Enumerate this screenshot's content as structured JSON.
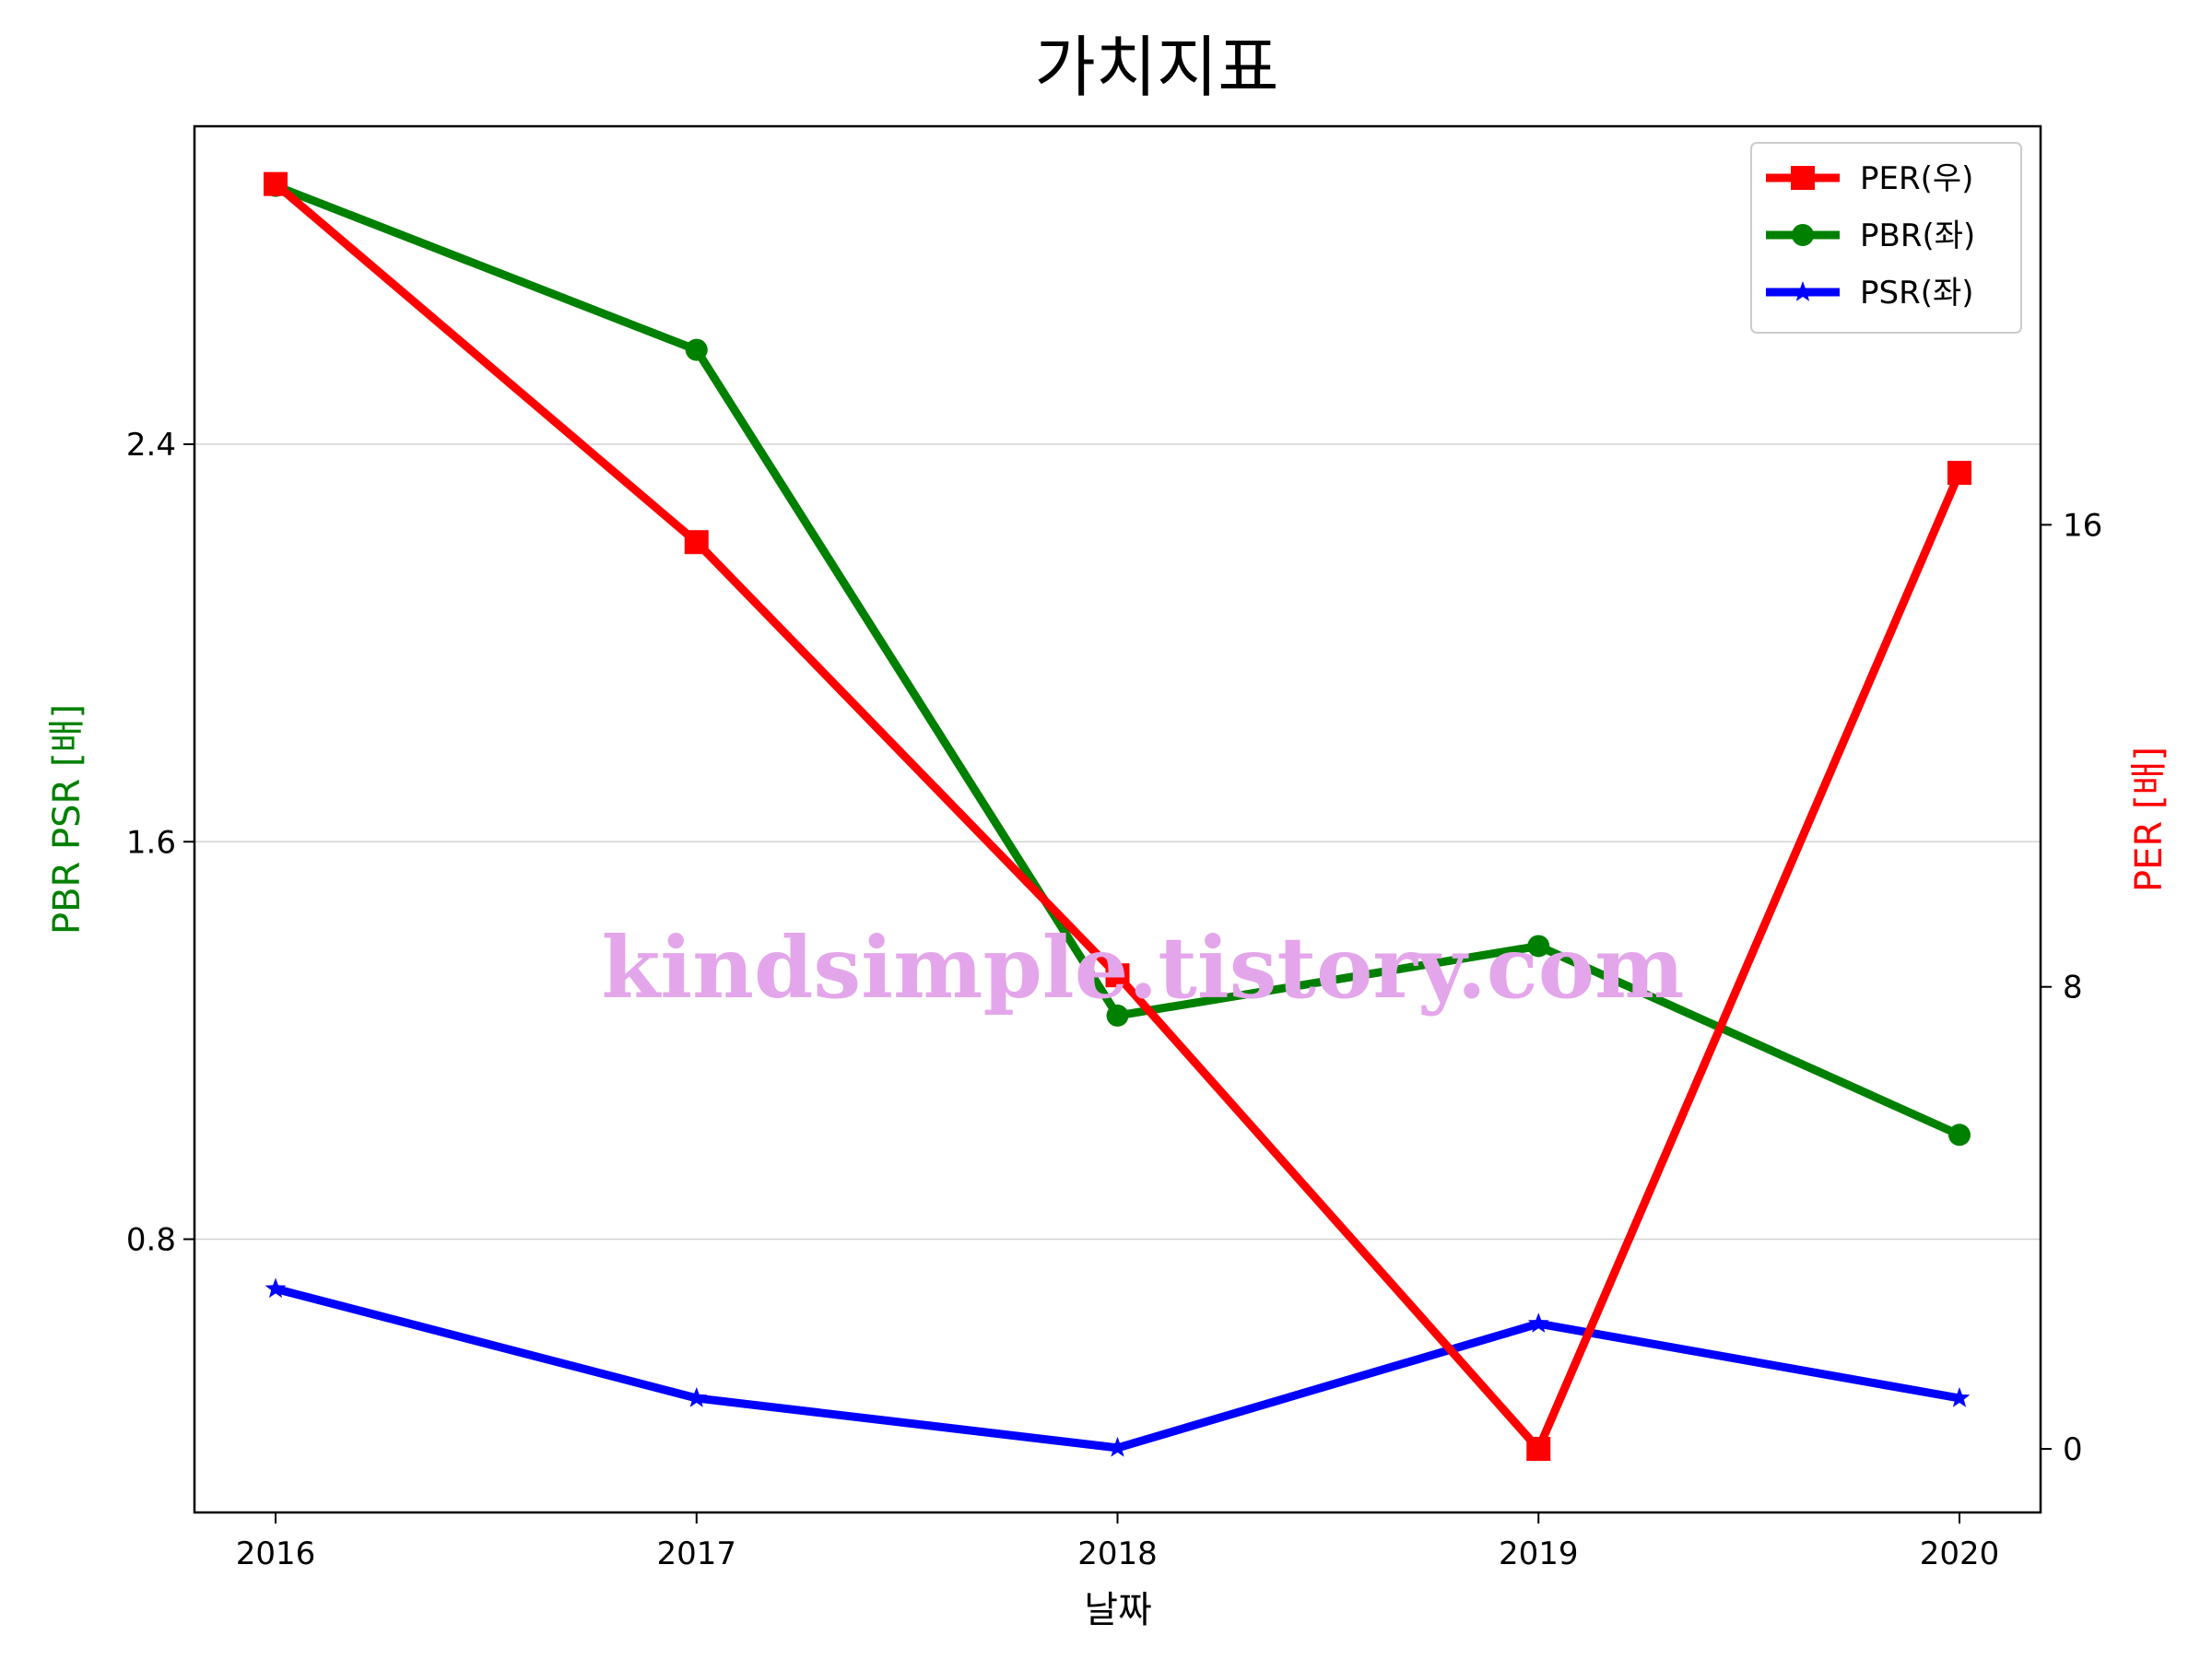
{
  "chart_data": {
    "type": "line",
    "title": "가치지표",
    "xlabel": "날짜",
    "ylabel_left": "PBR PSR [배]",
    "ylabel_right": "PER [배]",
    "categories": [
      "2016",
      "2017",
      "2018",
      "2019",
      "2020"
    ],
    "y_left": {
      "range": [
        0.25,
        3.04
      ],
      "ticks": [
        0.8,
        1.6,
        2.4
      ],
      "tick_labels": [
        "0.8",
        "1.6",
        "2.4"
      ]
    },
    "y_right": {
      "range": [
        -1.1,
        22.9
      ],
      "ticks": [
        0,
        8,
        16
      ],
      "tick_labels": [
        "0",
        "8",
        "16"
      ]
    },
    "grid": "horizontal-left",
    "legend_position": "top-right",
    "series": [
      {
        "name": "PER(우)",
        "axis": "right",
        "color": "#ff0000",
        "marker": "square",
        "values": [
          21.9,
          15.7,
          8.2,
          0.0,
          16.9
        ]
      },
      {
        "name": "PBR(좌)",
        "axis": "left",
        "color": "#008000",
        "marker": "circle",
        "values": [
          2.92,
          2.59,
          1.25,
          1.39,
          1.01
        ]
      },
      {
        "name": "PSR(좌)",
        "axis": "left",
        "color": "#0000ff",
        "marker": "star",
        "values": [
          0.7,
          0.48,
          0.38,
          0.63,
          0.48
        ]
      }
    ],
    "watermark": "kindsimple.tistory.com"
  }
}
